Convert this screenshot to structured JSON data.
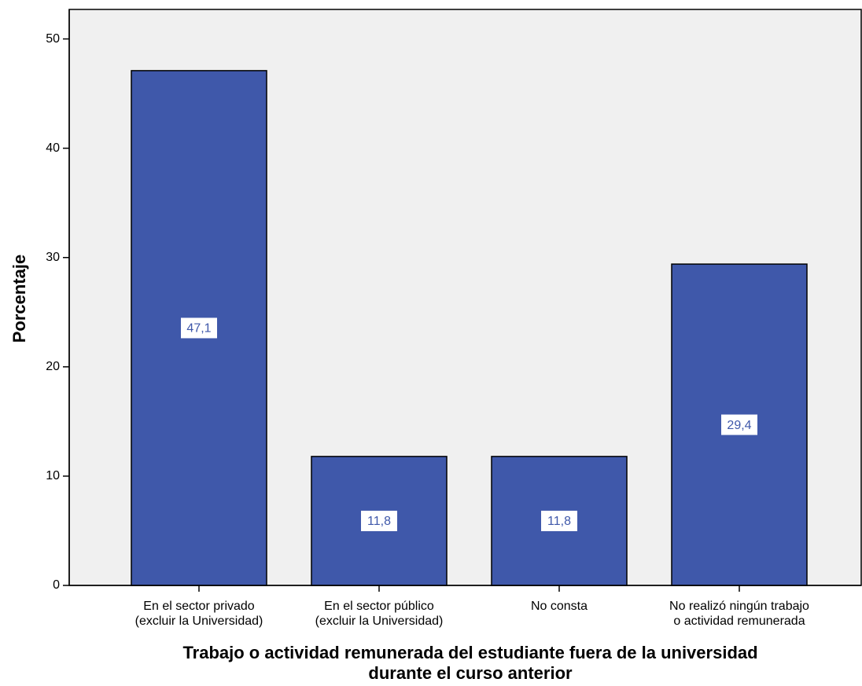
{
  "chart_data": {
    "type": "bar",
    "y_label": "Porcentaje",
    "x_label": [
      "Trabajo o actividad remunerada del estudiante fuera de la universidad",
      "durante el curso anterior"
    ],
    "categories": [
      [
        "En el sector privado",
        "(excluir la Universidad)"
      ],
      [
        "En el sector público",
        "(excluir la Universidad)"
      ],
      [
        "No consta"
      ],
      [
        "No realizó ningún trabajo",
        "o actividad remunerada"
      ]
    ],
    "values": [
      47.1,
      11.8,
      11.8,
      29.4
    ],
    "value_labels": [
      "47,1",
      "11,8",
      "11,8",
      "29,4"
    ],
    "color": "#3f58aa",
    "ylim": [
      0,
      52.7
    ],
    "yticks": [
      0,
      10,
      20,
      30,
      40,
      50
    ],
    "grid": false
  }
}
